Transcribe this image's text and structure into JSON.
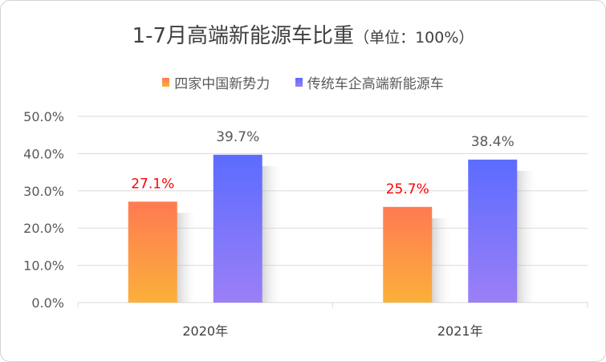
{
  "chart_data": {
    "type": "bar",
    "title": "1-7月高端新能源车比重",
    "subtitle": "（单位：100%）",
    "categories": [
      "2020年",
      "2021年"
    ],
    "series": [
      {
        "name": "四家中国新势力",
        "values": [
          27.1,
          25.7
        ],
        "color_top": "#ff7a52",
        "color_bottom": "#fbb03b",
        "label_color": "#ff0000"
      },
      {
        "name": "传统车企高端新能源车",
        "values": [
          39.7,
          38.4
        ],
        "color_top": "#5b6cff",
        "color_bottom": "#9c7ff6",
        "label_color": "#595959"
      }
    ],
    "value_labels": [
      [
        "27.1%",
        "25.7%"
      ],
      [
        "39.7%",
        "38.4%"
      ]
    ],
    "ylim": [
      0,
      50
    ],
    "yticks": [
      0,
      10,
      20,
      30,
      40,
      50
    ],
    "ytick_labels": [
      "0.0%",
      "10.0%",
      "20.0%",
      "30.0%",
      "40.0%",
      "50.0%"
    ],
    "grid": true,
    "legend_position": "top-center",
    "gridline_color": "#d9d9d9"
  }
}
